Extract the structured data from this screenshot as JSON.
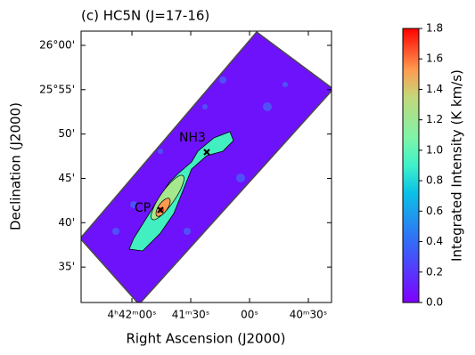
{
  "chart_data": {
    "type": "image",
    "title": "(c) HC5N (J=17-16)",
    "xlabel": "Right Ascension (J2000)",
    "ylabel": "Declination (J2000)",
    "xlim": [
      70.608,
      70.0758
    ],
    "xticks": [
      {
        "value": 70.5,
        "label": "4ʰ42ᵐ00ˢ"
      },
      {
        "value": 70.375,
        "label": "41ᵐ30ˢ"
      },
      {
        "value": 70.25,
        "label": "00ˢ"
      },
      {
        "value": 70.125,
        "label": "40ᵐ30ˢ"
      }
    ],
    "ylim": [
      25.5167,
      26.0267
    ],
    "yticks": [
      {
        "value": 26.0,
        "label": "26°00'"
      },
      {
        "value": 25.9167,
        "label": "25°55'"
      },
      {
        "value": 25.8333,
        "label": "50'"
      },
      {
        "value": 25.75,
        "label": "45'"
      },
      {
        "value": 25.6667,
        "label": "40'"
      },
      {
        "value": 25.5833,
        "label": "35'"
      }
    ],
    "annotations": [
      "NH3",
      "CP"
    ],
    "colorbar": {
      "label": "Integrated Intensity (K km/s)",
      "lim": [
        0,
        1.8
      ],
      "ticks": [
        {
          "value": 0,
          "label": "0.0"
        },
        0.2,
        0.4,
        0.6,
        0.8,
        {
          "value": 1,
          "label": "1.0"
        },
        1.2,
        1.4,
        1.6,
        1.8
      ]
    }
  }
}
